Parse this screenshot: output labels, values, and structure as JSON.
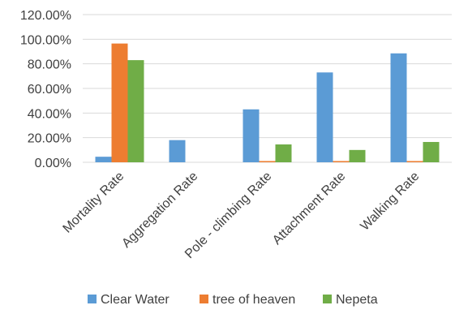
{
  "chart_data": {
    "type": "bar",
    "title": "",
    "xlabel": "",
    "ylabel": "",
    "categories": [
      "Mortality Rate",
      "Aggregation Rate",
      "Pole - climbing Rate",
      "Attachment Rate",
      "Walking Rate"
    ],
    "series": [
      {
        "name": "Clear Water",
        "color": "#5b9bd5",
        "values": [
          4.5,
          18,
          43,
          73,
          88.5
        ]
      },
      {
        "name": "tree of heaven",
        "color": "#ed7d31",
        "values": [
          96.5,
          0,
          1,
          1,
          1
        ]
      },
      {
        "name": "Nepeta",
        "color": "#70ad47",
        "values": [
          83,
          0,
          14.5,
          10,
          16.5
        ]
      }
    ],
    "ylim": [
      0,
      120
    ],
    "yticks": [
      0,
      20,
      40,
      60,
      80,
      100,
      120
    ],
    "ytick_labels": [
      "0.00%",
      "20.00%",
      "40.00%",
      "60.00%",
      "80.00%",
      "100.00%",
      "120.00%"
    ],
    "grid": true,
    "legend_position": "bottom"
  }
}
